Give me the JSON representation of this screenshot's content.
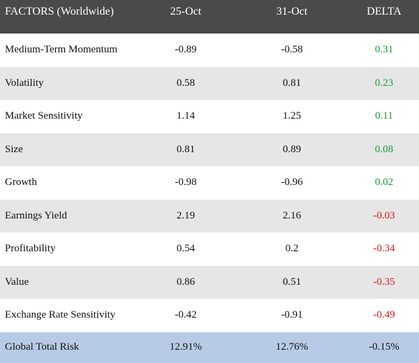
{
  "header": {
    "factor_label": "FACTORS (Worldwide)",
    "date1_label": "25-Oct",
    "date2_label": "31-Oct",
    "delta_label": "DELTA"
  },
  "colors": {
    "header_bg": "#4a4a4a",
    "stripe": "#e6e6e6",
    "total_bg": "#b8cbe6",
    "positive": "#1a9a3a",
    "negative": "#e0141e"
  },
  "rows": [
    {
      "name": "Medium-Term Momentum",
      "d1": "-0.89",
      "d2": "-0.58",
      "delta": "0.31",
      "sign": "pos"
    },
    {
      "name": "Volatility",
      "d1": "0.58",
      "d2": "0.81",
      "delta": "0.23",
      "sign": "pos"
    },
    {
      "name": "Market Sensitivity",
      "d1": "1.14",
      "d2": "1.25",
      "delta": "0.11",
      "sign": "pos"
    },
    {
      "name": "Size",
      "d1": "0.81",
      "d2": "0.89",
      "delta": "0.08",
      "sign": "pos"
    },
    {
      "name": "Growth",
      "d1": "-0.98",
      "d2": "-0.96",
      "delta": "0.02",
      "sign": "pos"
    },
    {
      "name": "Earnings Yield",
      "d1": "2.19",
      "d2": "2.16",
      "delta": "-0.03",
      "sign": "neg"
    },
    {
      "name": "Profitability",
      "d1": "0.54",
      "d2": "0.2",
      "delta": "-0.34",
      "sign": "neg"
    },
    {
      "name": "Value",
      "d1": "0.86",
      "d2": "0.51",
      "delta": "-0.35",
      "sign": "neg"
    },
    {
      "name": "Exchange Rate Sensitivity",
      "d1": "-0.42",
      "d2": "-0.91",
      "delta": "-0.49",
      "sign": "neg"
    }
  ],
  "total": {
    "name": "Global Total Risk",
    "d1": "12.91%",
    "d2": "12.76%",
    "delta": "-0.15%"
  }
}
